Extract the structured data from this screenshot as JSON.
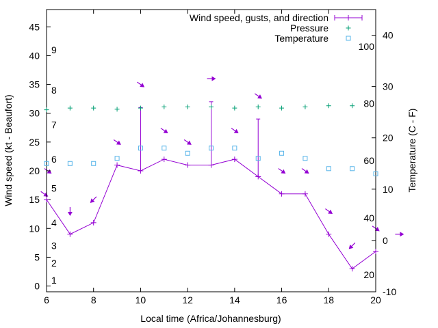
{
  "chart_data": {
    "type": "line",
    "title": "",
    "xlabel": "Local time (Africa/Johannesburg)",
    "ylabel_left": "Wind speed (kt - Beaufort)",
    "ylabel_right": "Temperature (C - F)",
    "xlim": [
      6,
      20
    ],
    "ylim_left": [
      -1,
      48
    ],
    "ylim_right": [
      -10,
      45
    ],
    "x_ticks": [
      6,
      8,
      10,
      12,
      14,
      16,
      18,
      20
    ],
    "y_left_ticks": [
      0,
      5,
      10,
      15,
      20,
      25,
      30,
      35,
      40,
      45
    ],
    "y_right_ticks": [
      -10,
      0,
      10,
      20,
      30,
      40
    ],
    "grid": false,
    "legend_position": "top-right",
    "beaufort_labels": [
      {
        "label": "1",
        "value": 1
      },
      {
        "label": "2",
        "value": 4
      },
      {
        "label": "3",
        "value": 7
      },
      {
        "label": "4",
        "value": 11
      },
      {
        "label": "5",
        "value": 17
      },
      {
        "label": "6",
        "value": 22
      },
      {
        "label": "7",
        "value": 28
      },
      {
        "label": "8",
        "value": 34
      },
      {
        "label": "9",
        "value": 41
      }
    ],
    "fahrenheit_labels": [
      {
        "label": "20",
        "temp_c": -6.7
      },
      {
        "label": "40",
        "temp_c": 4.4
      },
      {
        "label": "60",
        "temp_c": 15.6
      },
      {
        "label": "80",
        "temp_c": 26.7
      },
      {
        "label": "100",
        "temp_c": 37.8
      }
    ],
    "series": [
      {
        "name": "Wind speed, gusts, and direction",
        "color": "#9400d3",
        "x": [
          6,
          7,
          8,
          9,
          10,
          11,
          12,
          13,
          14,
          15,
          16,
          17,
          18,
          19,
          20
        ],
        "values": [
          15,
          9,
          11,
          21,
          20,
          22,
          21,
          21,
          22,
          19,
          16,
          16,
          9,
          3,
          6
        ],
        "gusts": [
          null,
          null,
          null,
          null,
          31,
          null,
          null,
          32,
          null,
          29,
          null,
          null,
          null,
          null,
          null
        ]
      },
      {
        "name": "Pressure",
        "color": "#009e73",
        "x": [
          6,
          7,
          8,
          9,
          10,
          11,
          12,
          13,
          14,
          15,
          16,
          17,
          18,
          19
        ],
        "values_on_left_scale": [
          30.6,
          30.9,
          30.9,
          30.7,
          30.9,
          31.1,
          31.1,
          31.1,
          30.9,
          31.1,
          30.9,
          31.1,
          31.3,
          31.3
        ]
      },
      {
        "name": "Temperature",
        "color": "#56b4e9",
        "x": [
          6,
          7,
          8,
          9,
          10,
          11,
          12,
          13,
          14,
          15,
          16,
          17,
          18,
          19,
          20
        ],
        "values": [
          15,
          15,
          15,
          16,
          18,
          18,
          17,
          18,
          18,
          16,
          17,
          16,
          14,
          14,
          13
        ]
      }
    ],
    "wind_direction_arrows": [
      {
        "x": 5.9,
        "y": 16,
        "dir": "down-right"
      },
      {
        "x": 6.05,
        "y": 20,
        "dir": "down-right"
      },
      {
        "x": 7,
        "y": 13,
        "dir": "down"
      },
      {
        "x": 8,
        "y": 15,
        "dir": "down-left"
      },
      {
        "x": 9,
        "y": 25,
        "dir": "down-right"
      },
      {
        "x": 10,
        "y": 35,
        "dir": "down-right"
      },
      {
        "x": 11,
        "y": 27,
        "dir": "down-right"
      },
      {
        "x": 12,
        "y": 25,
        "dir": "down-right"
      },
      {
        "x": 13,
        "y": 36,
        "dir": "right"
      },
      {
        "x": 14,
        "y": 27,
        "dir": "down-right"
      },
      {
        "x": 15,
        "y": 33,
        "dir": "down-right"
      },
      {
        "x": 16,
        "y": 20,
        "dir": "down-right"
      },
      {
        "x": 17,
        "y": 20,
        "dir": "down-right"
      },
      {
        "x": 18,
        "y": 13,
        "dir": "down-right"
      },
      {
        "x": 19,
        "y": 7,
        "dir": "down-left"
      },
      {
        "x": 20,
        "y": 10,
        "dir": "down-right"
      },
      {
        "x": 21,
        "y": 9,
        "dir": "right"
      }
    ]
  }
}
